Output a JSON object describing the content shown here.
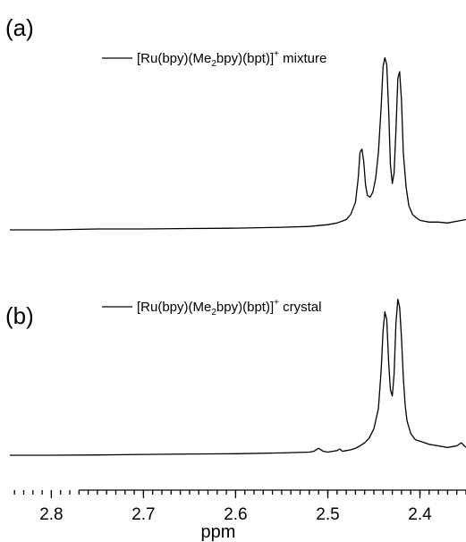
{
  "chart_data": {
    "type": "line",
    "xlabel": "ppm",
    "xlim": [
      2.845,
      2.35
    ],
    "x_reversed": true,
    "x_ticks": [
      2.8,
      2.7,
      2.6,
      2.5,
      2.4
    ],
    "x_tick_labels": [
      "2.8",
      "2.7",
      "2.6",
      "2.5",
      "2.4"
    ],
    "grid": false,
    "panels": [
      {
        "id": "a",
        "panel_label": "(a)",
        "legend": {
          "placement": "top-center",
          "pre": "[Ru(bpy)(Me",
          "sub": "2",
          "mid": "bpy)(bpt)]",
          "sup": "+",
          "post": " mixture"
        },
        "ylim": [
          0,
          1.05
        ],
        "series": [
          {
            "name": "[Ru(bpy)(Me2bpy)(bpt)]+ mixture",
            "x": [
              2.845,
              2.8,
              2.75,
              2.7,
              2.65,
              2.6,
              2.55,
              2.52,
              2.5,
              2.49,
              2.48,
              2.475,
              2.47,
              2.467,
              2.465,
              2.463,
              2.461,
              2.459,
              2.457,
              2.454,
              2.451,
              2.448,
              2.445,
              2.442,
              2.44,
              2.438,
              2.436,
              2.434,
              2.432,
              2.43,
              2.428,
              2.426,
              2.424,
              2.422,
              2.42,
              2.418,
              2.415,
              2.412,
              2.408,
              2.404,
              2.4,
              2.39,
              2.38,
              2.37,
              2.36,
              2.35
            ],
            "y": [
              0.0,
              0.0,
              0.005,
              0.005,
              0.008,
              0.01,
              0.015,
              0.02,
              0.03,
              0.04,
              0.06,
              0.09,
              0.16,
              0.3,
              0.45,
              0.47,
              0.4,
              0.26,
              0.2,
              0.19,
              0.22,
              0.3,
              0.45,
              0.72,
              0.95,
              1.0,
              0.96,
              0.7,
              0.38,
              0.27,
              0.33,
              0.58,
              0.88,
              0.92,
              0.75,
              0.45,
              0.25,
              0.14,
              0.09,
              0.07,
              0.055,
              0.045,
              0.045,
              0.04,
              0.05,
              0.06
            ]
          }
        ]
      },
      {
        "id": "b",
        "panel_label": "(b)",
        "legend": {
          "placement": "top-center",
          "pre": "[Ru(bpy)(Me",
          "sub": "2",
          "mid": "bpy)(bpt)]",
          "sup": "+",
          "post": " crystal"
        },
        "ylim": [
          0,
          1.05
        ],
        "series": [
          {
            "name": "[Ru(bpy)(Me2bpy)(bpt)]+ crystal",
            "x": [
              2.845,
              2.8,
              2.75,
              2.7,
              2.65,
              2.6,
              2.55,
              2.52,
              2.515,
              2.51,
              2.505,
              2.5,
              2.495,
              2.49,
              2.487,
              2.484,
              2.48,
              2.475,
              2.47,
              2.465,
              2.46,
              2.455,
              2.45,
              2.445,
              2.442,
              2.44,
              2.438,
              2.436,
              2.434,
              2.432,
              2.43,
              2.428,
              2.426,
              2.424,
              2.422,
              2.42,
              2.418,
              2.416,
              2.414,
              2.41,
              2.405,
              2.4,
              2.39,
              2.38,
              2.37,
              2.36,
              2.355,
              2.35
            ],
            "y": [
              0.0,
              0.0,
              0.002,
              0.005,
              0.008,
              0.01,
              0.015,
              0.02,
              0.025,
              0.045,
              0.025,
              0.02,
              0.025,
              0.03,
              0.04,
              0.025,
              0.03,
              0.035,
              0.045,
              0.06,
              0.08,
              0.11,
              0.17,
              0.3,
              0.55,
              0.8,
              0.92,
              0.87,
              0.6,
              0.42,
              0.38,
              0.52,
              0.85,
              1.0,
              0.95,
              0.75,
              0.5,
              0.32,
              0.22,
              0.14,
              0.1,
              0.09,
              0.07,
              0.06,
              0.05,
              0.06,
              0.08,
              0.05
            ]
          }
        ]
      }
    ]
  }
}
